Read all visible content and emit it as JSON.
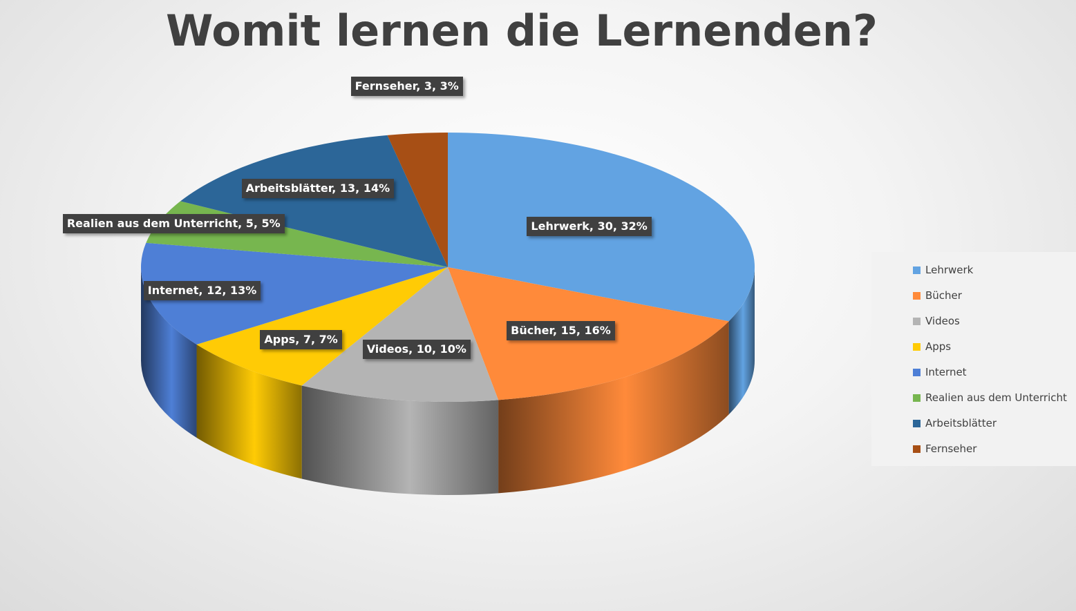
{
  "chart_data": {
    "type": "pie",
    "title": "Womit lernen die Lernenden?",
    "legend_position": "right",
    "slices": [
      {
        "name": "Lehrwerk",
        "value": 30,
        "percent": "32%",
        "label": "Lehrwerk, 30, 32%",
        "color": "#62A3E2"
      },
      {
        "name": "Bücher",
        "value": 15,
        "percent": "16%",
        "label": "Bücher, 15, 16%",
        "color": "#FF8A3A"
      },
      {
        "name": "Videos",
        "value": 10,
        "percent": "10%",
        "label": "Videos, 10, 10%",
        "color": "#B4B4B4"
      },
      {
        "name": "Apps",
        "value": 7,
        "percent": "7%",
        "label": "Apps, 7, 7%",
        "color": "#FFCB05"
      },
      {
        "name": "Internet",
        "value": 12,
        "percent": "13%",
        "label": "Internet, 12, 13%",
        "color": "#4E7FD6"
      },
      {
        "name": "Realien aus dem Unterricht",
        "value": 5,
        "percent": "5%",
        "label": "Realien aus dem Unterricht, 5, 5%",
        "color": "#77B64F"
      },
      {
        "name": "Arbeitsblätter",
        "value": 13,
        "percent": "14%",
        "label": "Arbeitsblätter, 13, 14%",
        "color": "#2C6698"
      },
      {
        "name": "Fernseher",
        "value": 3,
        "percent": "3%",
        "label": "Fernseher, 3, 3%",
        "color": "#A74F15"
      }
    ]
  }
}
